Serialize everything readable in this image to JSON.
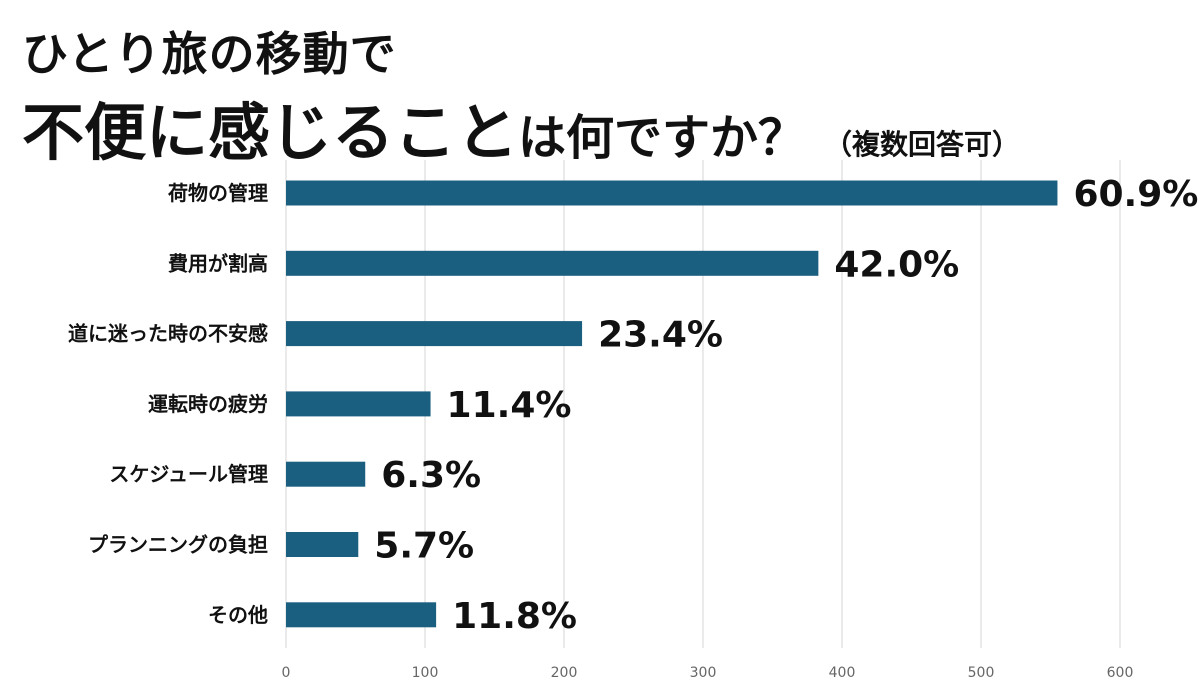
{
  "title": {
    "line1": "ひとり旅の移動で",
    "line2_big": "不便に感じること",
    "line2_mid": "は何ですか？",
    "line2_small": "（複数回答可）"
  },
  "colors": {
    "bar": "#1b5f80",
    "grid": "#d6d6d6",
    "text": "#111111"
  },
  "chart_data": {
    "type": "bar",
    "orientation": "horizontal",
    "title": "ひとり旅の移動で不便に感じることは何ですか？（複数回答可）",
    "categories": [
      "荷物の管理",
      "費用が割高",
      "道に迷った時の不安感",
      "運転時の疲労",
      "スケジュール管理",
      "プランニングの負担",
      "その他"
    ],
    "values": [
      555,
      383,
      213,
      104,
      57,
      52,
      108
    ],
    "value_labels": [
      "60.9%",
      "42.0%",
      "23.4%",
      "11.4%",
      "6.3%",
      "5.7%",
      "11.8%"
    ],
    "xlim": [
      0,
      600
    ],
    "xticks": [
      0,
      100,
      200,
      300,
      400,
      500,
      600
    ],
    "grid": "vertical",
    "legend": "none"
  }
}
